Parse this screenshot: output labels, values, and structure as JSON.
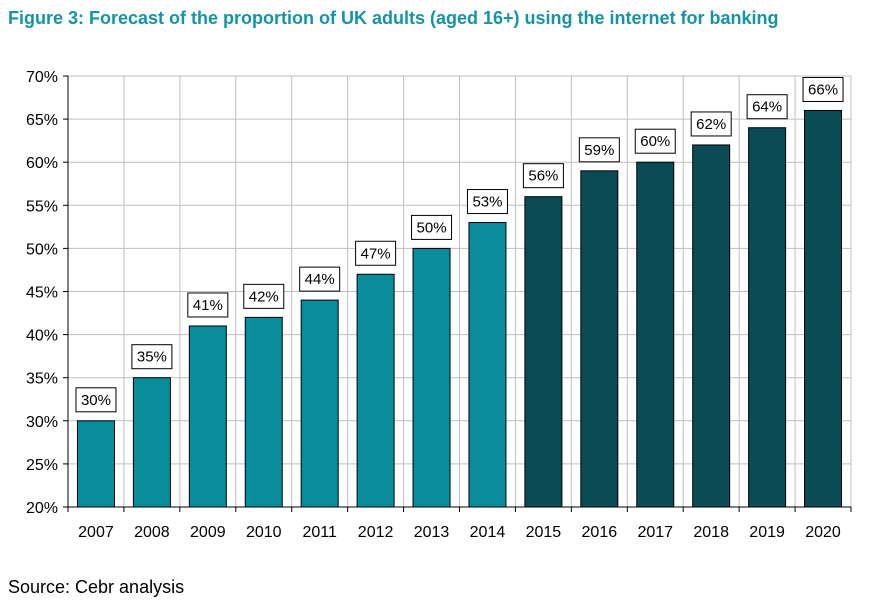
{
  "title": "Figure 3: Forecast of the proportion of UK adults (aged 16+) using the internet for banking",
  "source": "Source: Cebr analysis",
  "colors": {
    "title": "#1196a8",
    "historical": "#0a8d9b",
    "forecast": "#0b4b55"
  },
  "chart_data": {
    "type": "bar",
    "categories": [
      "2007",
      "2008",
      "2009",
      "2010",
      "2011",
      "2012",
      "2013",
      "2014",
      "2015",
      "2016",
      "2017",
      "2018",
      "2019",
      "2020"
    ],
    "values": [
      30,
      35,
      41,
      42,
      44,
      47,
      50,
      53,
      56,
      59,
      60,
      62,
      64,
      66
    ],
    "data_labels": [
      "30%",
      "35%",
      "41%",
      "42%",
      "44%",
      "47%",
      "50%",
      "53%",
      "56%",
      "59%",
      "60%",
      "62%",
      "64%",
      "66%"
    ],
    "forecast_from": "2015",
    "ylim": [
      20,
      70
    ],
    "yticks": [
      20,
      25,
      30,
      35,
      40,
      45,
      50,
      55,
      60,
      65,
      70
    ],
    "ytick_labels": [
      "20%",
      "25%",
      "30%",
      "35%",
      "40%",
      "45%",
      "50%",
      "55%",
      "60%",
      "65%",
      "70%"
    ],
    "grid": true,
    "legend": "none",
    "xlabel": "",
    "ylabel": ""
  }
}
